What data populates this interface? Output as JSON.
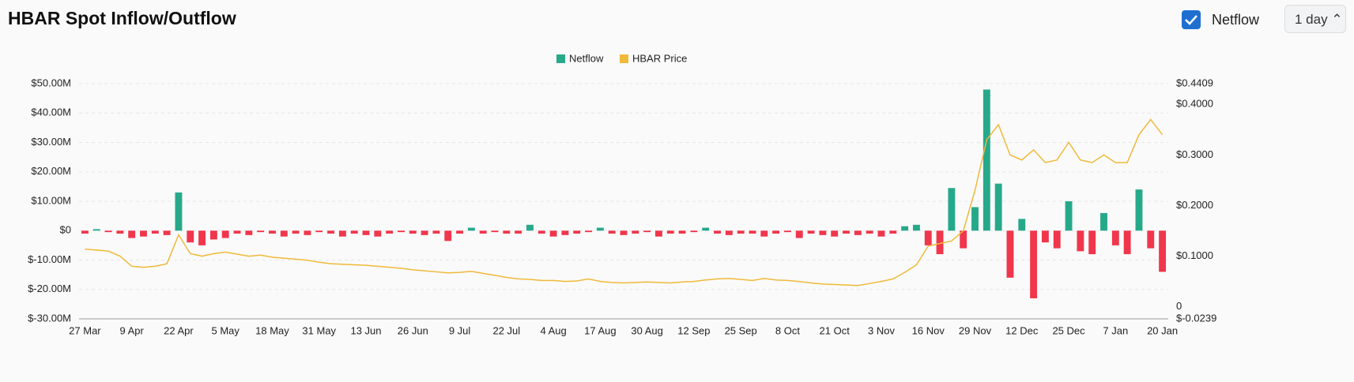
{
  "header": {
    "title": "HBAR Spot Inflow/Outflow",
    "toggle_label": "Netflow",
    "interval": "1 day"
  },
  "chart_data": {
    "type": "bar-line",
    "categories": [
      "27 Mar",
      null,
      null,
      null,
      "9 Apr",
      null,
      null,
      null,
      "22 Apr",
      null,
      null,
      null,
      "5 May",
      null,
      null,
      null,
      "18 May",
      null,
      null,
      null,
      "31 May",
      null,
      null,
      null,
      "13 Jun",
      null,
      null,
      null,
      "26 Jun",
      null,
      null,
      null,
      "9 Jul",
      null,
      null,
      null,
      "22 Jul",
      null,
      null,
      null,
      "4 Aug",
      null,
      null,
      null,
      "17 Aug",
      null,
      null,
      null,
      "30 Aug",
      null,
      null,
      null,
      "12 Sep",
      null,
      null,
      null,
      "25 Sep",
      null,
      null,
      null,
      "8 Oct",
      null,
      null,
      null,
      "21 Oct",
      null,
      null,
      null,
      "3 Nov",
      null,
      null,
      null,
      "16 Nov",
      null,
      null,
      null,
      "29 Nov",
      null,
      null,
      null,
      "12 Dec",
      null,
      null,
      null,
      "25 Dec",
      null,
      null,
      null,
      "7 Jan",
      null,
      null,
      null,
      "20 Jan"
    ],
    "series": [
      {
        "name": "Netflow",
        "type": "bar",
        "color": "#26a98b",
        "negative_color": "#f0364c",
        "values": [
          -1000000,
          500000,
          -500000,
          -1000000,
          -2500000,
          -2000000,
          -1000000,
          -1500000,
          13000000,
          -4000000,
          -5000000,
          -3000000,
          -2500000,
          -1000000,
          -1500000,
          -500000,
          -1000000,
          -2000000,
          -1000000,
          -1500000,
          -500000,
          -1000000,
          -2000000,
          -1000000,
          -1500000,
          -2000000,
          -1000000,
          -500000,
          -1000000,
          -1500000,
          -1000000,
          -3500000,
          -1000000,
          1000000,
          -1000000,
          -500000,
          -1000000,
          -1000000,
          2000000,
          -1000000,
          -2000000,
          -1500000,
          -1000000,
          -500000,
          1000000,
          -1000000,
          -1500000,
          -1000000,
          -500000,
          -2000000,
          -1000000,
          -1000000,
          -500000,
          1000000,
          -1000000,
          -1500000,
          -1000000,
          -1000000,
          -2000000,
          -1000000,
          -500000,
          -2500000,
          -1000000,
          -1500000,
          -2000000,
          -1000000,
          -1500000,
          -1000000,
          -2000000,
          -1000000,
          1500000,
          2000000,
          -5000000,
          -8000000,
          14500000,
          -6000000,
          8000000,
          48000000,
          16000000,
          -16000000,
          4000000,
          -23000000,
          -4000000,
          -6000000,
          10000000,
          -7000000,
          -8000000,
          6000000,
          -5000000,
          -8000000,
          14000000,
          -6000000,
          -14000000
        ]
      },
      {
        "name": "HBAR Price",
        "type": "line",
        "axis": "y2",
        "color": "#f0b93a",
        "values": [
          0.114,
          0.112,
          0.11,
          0.1,
          0.08,
          0.078,
          0.08,
          0.085,
          0.142,
          0.105,
          0.1,
          0.105,
          0.108,
          0.104,
          0.1,
          0.102,
          0.098,
          0.096,
          0.094,
          0.092,
          0.088,
          0.085,
          0.084,
          0.083,
          0.082,
          0.08,
          0.078,
          0.076,
          0.073,
          0.071,
          0.069,
          0.067,
          0.068,
          0.07,
          0.066,
          0.062,
          0.058,
          0.055,
          0.054,
          0.052,
          0.052,
          0.05,
          0.051,
          0.055,
          0.05,
          0.048,
          0.047,
          0.048,
          0.049,
          0.048,
          0.047,
          0.049,
          0.05,
          0.053,
          0.055,
          0.056,
          0.054,
          0.052,
          0.056,
          0.053,
          0.052,
          0.05,
          0.047,
          0.045,
          0.044,
          0.043,
          0.042,
          0.046,
          0.05,
          0.055,
          0.068,
          0.083,
          0.12,
          0.125,
          0.13,
          0.15,
          0.23,
          0.33,
          0.36,
          0.3,
          0.29,
          0.31,
          0.285,
          0.29,
          0.325,
          0.29,
          0.285,
          0.3,
          0.285,
          0.285,
          0.34,
          0.37,
          0.34
        ]
      }
    ],
    "ylim": [
      -30000000,
      50000000
    ],
    "yticks": [
      {
        "value": -30000000,
        "label": "$-30.00M"
      },
      {
        "value": -20000000,
        "label": "$-20.00M"
      },
      {
        "value": -10000000,
        "label": "$-10.00M"
      },
      {
        "value": 0,
        "label": "$0"
      },
      {
        "value": 10000000,
        "label": "$10.00M"
      },
      {
        "value": 20000000,
        "label": "$20.00M"
      },
      {
        "value": 30000000,
        "label": "$30.00M"
      },
      {
        "value": 40000000,
        "label": "$40.00M"
      },
      {
        "value": 50000000,
        "label": "$50.00M"
      }
    ],
    "y2lim": [
      -0.0239,
      0.4409
    ],
    "y2ticks": [
      {
        "value": -0.0239,
        "label": "$-0.0239"
      },
      0,
      {
        "value": 0.1,
        "label": "$0.1000"
      },
      {
        "value": 0.2,
        "label": "$0.2000"
      },
      {
        "value": 0.3,
        "label": "$0.3000"
      },
      {
        "value": 0.4,
        "label": "$0.4000"
      },
      {
        "value": 0.4409,
        "label": "$0.4409"
      }
    ],
    "grid": true,
    "legend": "top"
  }
}
